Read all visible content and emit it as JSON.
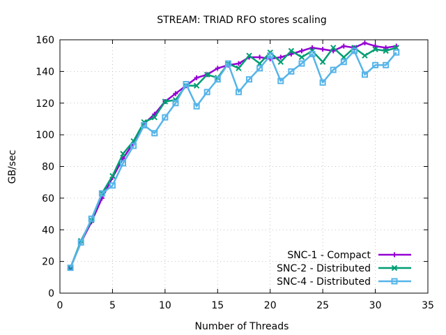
{
  "chart_data": {
    "type": "line",
    "title": "STREAM: TRIAD RFO stores scaling",
    "xlabel": "Number of Threads",
    "ylabel": "GB/sec",
    "xlim": [
      0,
      35
    ],
    "ylim": [
      0,
      160
    ],
    "xticks": [
      0,
      5,
      10,
      15,
      20,
      25,
      30,
      35
    ],
    "yticks": [
      0,
      20,
      40,
      60,
      80,
      100,
      120,
      140,
      160
    ],
    "grid": true,
    "legend_position": "bottom-right",
    "x": [
      1,
      2,
      3,
      4,
      5,
      6,
      7,
      8,
      9,
      10,
      11,
      12,
      13,
      14,
      15,
      16,
      17,
      18,
      19,
      20,
      21,
      22,
      23,
      24,
      25,
      26,
      27,
      28,
      29,
      30,
      31,
      32
    ],
    "series": [
      {
        "name": "SNC-1 - Compact",
        "color": "#9400d3",
        "marker": "plus",
        "values": [
          16,
          32,
          45,
          60,
          73,
          85,
          95,
          107,
          113,
          121,
          126,
          131,
          136,
          138,
          142,
          144,
          145,
          149,
          149,
          148,
          149,
          151,
          153,
          155,
          154,
          153,
          156,
          155,
          158,
          156,
          155,
          156
        ]
      },
      {
        "name": "SNC-2 - Distributed",
        "color": "#009e73",
        "marker": "cross",
        "values": [
          16,
          33,
          46,
          63,
          74,
          88,
          96,
          108,
          111,
          121,
          122,
          131,
          131,
          138,
          136,
          145,
          142,
          150,
          145,
          152,
          146,
          153,
          149,
          153,
          146,
          155,
          149,
          155,
          150,
          154,
          153,
          155
        ]
      },
      {
        "name": "SNC-4 - Distributed",
        "color": "#56b4e9",
        "marker": "square",
        "values": [
          16,
          32,
          47,
          63,
          68,
          82,
          93,
          106,
          101,
          111,
          120,
          132,
          118,
          127,
          135,
          145,
          127,
          135,
          142,
          150,
          134,
          140,
          145,
          151,
          133,
          141,
          146,
          153,
          138,
          144,
          144,
          152
        ]
      }
    ]
  }
}
